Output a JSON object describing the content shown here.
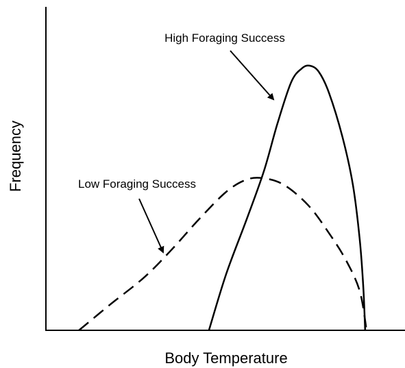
{
  "chart_data": {
    "type": "line",
    "xlabel": "Body Temperature",
    "ylabel": "Frequency",
    "xlim": [
      0,
      100
    ],
    "ylim": [
      0,
      100
    ],
    "series": [
      {
        "color": "#000000",
        "dash": "solid",
        "x": [
          45.4,
          50.2,
          55.9,
          60.7,
          64.5,
          68.3,
          71.2,
          73.5,
          76.0,
          78.8,
          82.6,
          85.5,
          87.4,
          88.4,
          88.9
        ],
        "values": [
          0,
          17.4,
          34.3,
          49.2,
          64.0,
          76.7,
          80.9,
          81.8,
          79.9,
          73.5,
          59.7,
          44.9,
          28.0,
          13.1,
          0
        ]
      },
      {
        "color": "#000000",
        "dash": "dashed",
        "x": [
          9.2,
          17.7,
          27.3,
          34.9,
          42.6,
          50.2,
          55.9,
          60.7,
          66.4,
          73.1,
          78.8,
          83.6,
          87.4,
          89.3
        ],
        "values": [
          0,
          7.8,
          16.3,
          24.8,
          34.3,
          42.8,
          46.6,
          47.0,
          44.9,
          38.6,
          30.1,
          21.6,
          12.1,
          0
        ]
      }
    ],
    "annotations": [
      "High Foraging Success",
      "Low Foraging Success"
    ]
  }
}
